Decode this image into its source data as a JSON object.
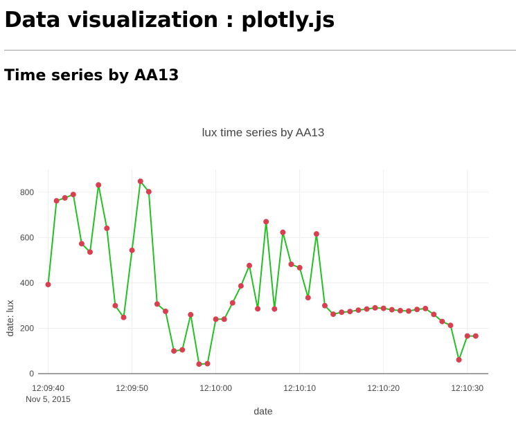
{
  "page": {
    "title": "Data visualization : plotly.js",
    "section_title": "Time series by AA13"
  },
  "chart_data": {
    "type": "line",
    "title": "lux time series by AA13",
    "xlabel": "date",
    "ylabel": "date: lux",
    "ylim": [
      0,
      900
    ],
    "y_ticks": [
      0,
      200,
      400,
      600,
      800
    ],
    "x_ticks": [
      "12:09:40",
      "12:09:50",
      "12:10:00",
      "12:10:10",
      "12:10:20",
      "12:10:30"
    ],
    "x_tick_date": "Nov 5, 2015",
    "x_start_label": "12:09:40",
    "x_end_label": "12:10:31",
    "grid": true,
    "line_color": "#22c022",
    "marker_color": "#d9404f",
    "series": [
      {
        "x": [
          "12:09:40",
          "12:09:41",
          "12:09:42",
          "12:09:43",
          "12:09:44",
          "12:09:45",
          "12:09:46",
          "12:09:47",
          "12:09:48",
          "12:09:49",
          "12:09:50",
          "12:09:51",
          "12:09:52",
          "12:09:53",
          "12:09:54",
          "12:09:55",
          "12:09:56",
          "12:09:57",
          "12:09:58",
          "12:09:59",
          "12:10:00",
          "12:10:01",
          "12:10:02",
          "12:10:03",
          "12:10:04",
          "12:10:05",
          "12:10:06",
          "12:10:07",
          "12:10:08",
          "12:10:09",
          "12:10:10",
          "12:10:11",
          "12:10:12",
          "12:10:13",
          "12:10:14",
          "12:10:15",
          "12:10:16",
          "12:10:17",
          "12:10:18",
          "12:10:19",
          "12:10:20",
          "12:10:21",
          "12:10:22",
          "12:10:23",
          "12:10:24",
          "12:10:25",
          "12:10:26",
          "12:10:27",
          "12:10:28",
          "12:10:29",
          "12:10:30",
          "12:10:31"
        ],
        "values": [
          393,
          762,
          775,
          790,
          573,
          536,
          832,
          641,
          300,
          248,
          544,
          848,
          802,
          307,
          275,
          100,
          105,
          260,
          42,
          44,
          240,
          240,
          312,
          387,
          477,
          286,
          670,
          285,
          623,
          482,
          467,
          335,
          616,
          300,
          262,
          271,
          274,
          280,
          285,
          290,
          288,
          282,
          278,
          276,
          283,
          287,
          261,
          230,
          213,
          61,
          166,
          166
        ]
      }
    ]
  }
}
